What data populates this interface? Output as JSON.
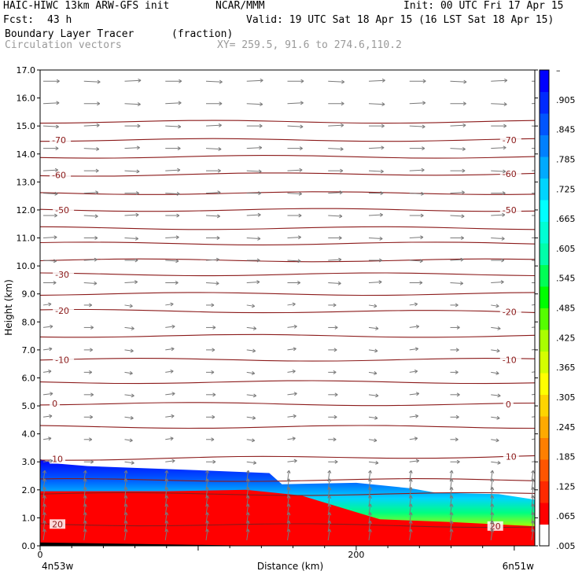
{
  "header": {
    "model": "HAIC-HIWC 13km ARW-GFS init",
    "org": "NCAR/MMM",
    "init": "Init: 00 UTC Fri 17 Apr 15",
    "fcst_label": "Fcst:",
    "fcst_value": "43 h",
    "valid": "Valid: 19 UTC Sat 18 Apr 15 (16 LST Sat 18 Apr 15)",
    "field": "Boundary Layer Tracer",
    "units": "(fraction)",
    "vectors": "Circulation vectors",
    "xy": "XY= 259.5, 91.6 to 274.6,110.2"
  },
  "colors": {
    "contour": "#8b1a1a",
    "vector": "#7a7a7a",
    "colorbar": [
      "#ffffff",
      "#ff0000",
      "#ff2a00",
      "#ff5500",
      "#ff7f00",
      "#ffaa00",
      "#ffd400",
      "#ffff00",
      "#d4ff00",
      "#aaff00",
      "#55ff00",
      "#00ff00",
      "#00ff55",
      "#00ffaa",
      "#00ffd4",
      "#00ffff",
      "#00d4ff",
      "#00aaff",
      "#0080ff",
      "#0055ff",
      "#002aff",
      "#0000ff"
    ]
  },
  "chart_data": {
    "type": "heatmap",
    "xlabel": "Distance (km)",
    "ylabel": "Height (km)",
    "xlim": [
      0,
      313
    ],
    "ylim": [
      0.0,
      17.0
    ],
    "x_ticks": [
      {
        "v": 0,
        "label": "0"
      },
      {
        "v": 200,
        "label": "200"
      }
    ],
    "x_end_labels": {
      "left": "4n53w",
      "right": "6n51w"
    },
    "y_ticks": [
      "0.0",
      "1.0",
      "2.0",
      "3.0",
      "4.0",
      "5.0",
      "6.0",
      "7.0",
      "8.0",
      "9.0",
      "10.0",
      "11.0",
      "12.0",
      "13.0",
      "14.0",
      "15.0",
      "16.0",
      "17.0"
    ],
    "colorbar_labels": [
      ".005",
      ".065",
      ".125",
      ".185",
      ".245",
      ".305",
      ".365",
      ".425",
      ".485",
      ".545",
      ".605",
      ".665",
      ".725",
      ".785",
      ".845",
      ".905",
      "–"
    ],
    "tracer_top_km": [
      {
        "x": 0,
        "y": 3.1
      },
      {
        "x": 8,
        "y": 2.95
      },
      {
        "x": 30,
        "y": 2.85
      },
      {
        "x": 100,
        "y": 2.7
      },
      {
        "x": 145,
        "y": 2.6
      },
      {
        "x": 153,
        "y": 2.2
      },
      {
        "x": 200,
        "y": 2.25
      },
      {
        "x": 235,
        "y": 2.05
      },
      {
        "x": 250,
        "y": 1.9
      },
      {
        "x": 290,
        "y": 1.85
      },
      {
        "x": 313,
        "y": 1.65
      }
    ],
    "tracer_full_top_km": [
      {
        "x": 0,
        "y": 1.95
      },
      {
        "x": 80,
        "y": 1.95
      },
      {
        "x": 130,
        "y": 2.0
      },
      {
        "x": 165,
        "y": 1.8
      },
      {
        "x": 200,
        "y": 1.2
      },
      {
        "x": 215,
        "y": 0.95
      },
      {
        "x": 260,
        "y": 0.85
      },
      {
        "x": 313,
        "y": 0.7
      }
    ],
    "contours_temperature_C": [
      {
        "label": "20",
        "left_km": 0.78,
        "right_km": 0.7,
        "labels_at": [
          8,
          285
        ]
      },
      {
        "label": "10",
        "left_km": 3.1,
        "right_km": 3.2,
        "labels_at": [
          8,
          295
        ]
      },
      {
        "label": "0",
        "left_km": 5.08,
        "right_km": 5.05,
        "labels_at": [
          8,
          295
        ]
      },
      {
        "label": "-10",
        "left_km": 6.65,
        "right_km": 6.65,
        "labels_at": [
          10,
          293
        ]
      },
      {
        "label": "-20",
        "left_km": 8.4,
        "right_km": 8.35,
        "labels_at": [
          10,
          293
        ]
      },
      {
        "label": "-30",
        "left_km": 9.7,
        "right_km": 9.7,
        "labels_at": [
          10,
          null
        ]
      },
      {
        "label": "-50",
        "left_km": 12.0,
        "right_km": 12.0,
        "labels_at": [
          10,
          293
        ]
      },
      {
        "label": "-60",
        "left_km": 13.25,
        "right_km": 13.3,
        "labels_at": [
          8,
          293
        ]
      },
      {
        "label": "-70",
        "left_km": 14.5,
        "right_km": 14.5,
        "labels_at": [
          8,
          293
        ]
      }
    ],
    "contours_unlabeled_km": [
      1.85,
      2.35,
      4.25,
      5.85,
      7.5,
      9.0,
      10.2,
      10.8,
      11.35,
      12.6,
      13.9,
      15.15
    ],
    "vector_rows_km": [
      0.2,
      0.5,
      0.8,
      1.1,
      1.4,
      1.7,
      2.0,
      2.3,
      3.0,
      3.8,
      4.6,
      5.4,
      6.2,
      7.0,
      7.8,
      8.6,
      9.4,
      10.2,
      11.0,
      11.8,
      12.6,
      13.4,
      14.2,
      15.0,
      15.8,
      16.6
    ]
  }
}
